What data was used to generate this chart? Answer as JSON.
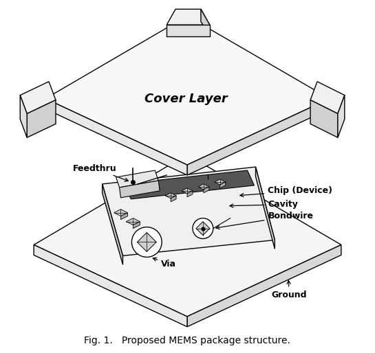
{
  "title": "Fig. 1.   Proposed MEMS package structure.",
  "label_cover": "Cover Layer",
  "label_feedthru": "Feedthru",
  "label_chip": "Chip (Device)",
  "label_cavity": "Cavity",
  "label_bondwire": "Bondwire",
  "label_via": "Via",
  "label_ground": "Ground",
  "background_color": "#ffffff",
  "line_color": "#000000",
  "fill_top": "#ffffff",
  "fill_side_light": "#e8e8e8",
  "fill_side_dark": "#d0d0d0",
  "fill_strip": "#555555",
  "fill_pad": "#cccccc"
}
